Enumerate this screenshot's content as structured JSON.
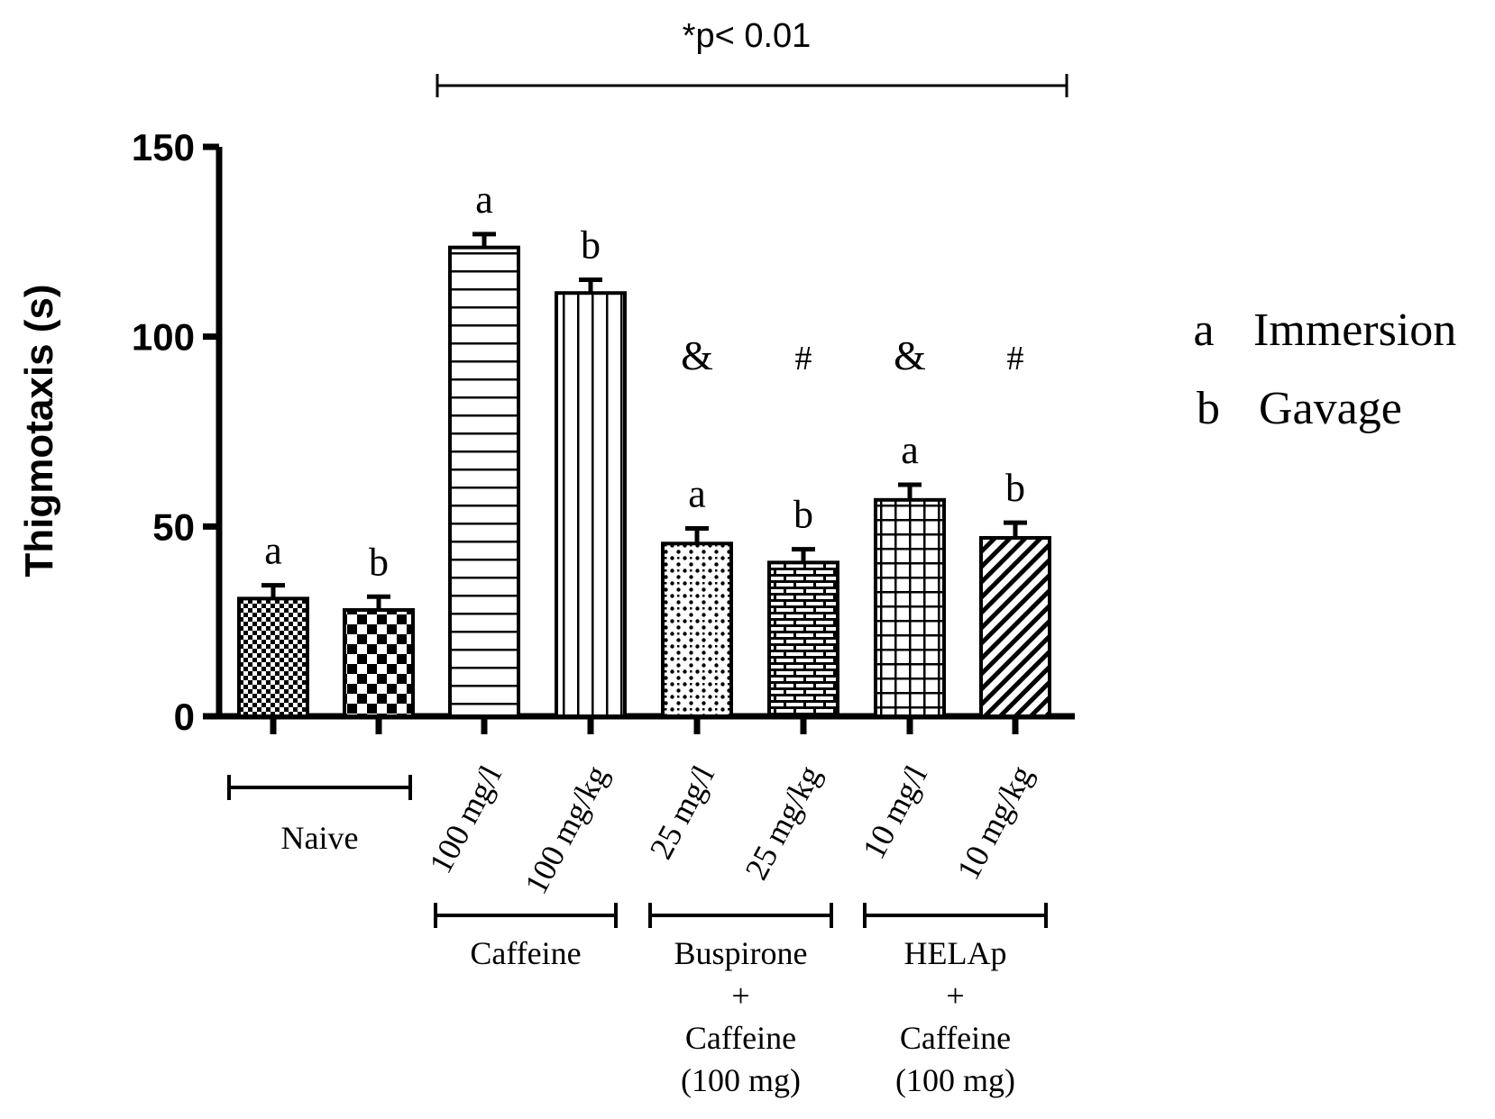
{
  "chart_data": {
    "type": "bar",
    "title": "",
    "xlabel": "",
    "ylabel": "Thigmotaxis (s)",
    "ylim": [
      0,
      150
    ],
    "yticks": [
      0,
      50,
      100,
      150
    ],
    "grid": false,
    "significance": {
      "label": "*p< 0.01",
      "span": "Caffeine 100 mg/l to HELAp + Caffeine 10 mg/kg"
    },
    "bars": [
      {
        "category": "Naive a",
        "value": 31,
        "error": 3.5,
        "route": "a",
        "pattern": "fine-check"
      },
      {
        "category": "Naive b",
        "value": 28,
        "error": 3.5,
        "route": "b",
        "pattern": "checker"
      },
      {
        "category": "100 mg/l",
        "value": 123.5,
        "error": 3.5,
        "route": "a",
        "pattern": "hlines"
      },
      {
        "category": "100 mg/kg",
        "value": 111.5,
        "error": 3.5,
        "route": "b",
        "pattern": "vlines"
      },
      {
        "category": "25 mg/l",
        "value": 45.5,
        "error": 4,
        "route": "a",
        "pattern": "dots",
        "mark": "&"
      },
      {
        "category": "25 mg/kg",
        "value": 40.5,
        "error": 3.5,
        "route": "b",
        "pattern": "bricks",
        "mark": "#"
      },
      {
        "category": "10 mg/l",
        "value": 57,
        "error": 4,
        "route": "a",
        "pattern": "grid",
        "mark": "&"
      },
      {
        "category": "10 mg/kg",
        "value": 47,
        "error": 4,
        "route": "b",
        "pattern": "diag",
        "mark": "#"
      }
    ],
    "groups": [
      {
        "label_lines": [
          "Naive"
        ]
      },
      {
        "label_lines": [
          "Caffeine"
        ]
      },
      {
        "label_lines": [
          "Buspirone",
          "+",
          "Caffeine",
          "(100 mg)"
        ]
      },
      {
        "label_lines": [
          "HELAp",
          "+",
          "Caffeine",
          "(100 mg)"
        ]
      }
    ],
    "legend": {
      "position": "right",
      "items": [
        {
          "key": "a",
          "label": "Immersion"
        },
        {
          "key": "b",
          "label": "Gavage"
        }
      ]
    }
  }
}
